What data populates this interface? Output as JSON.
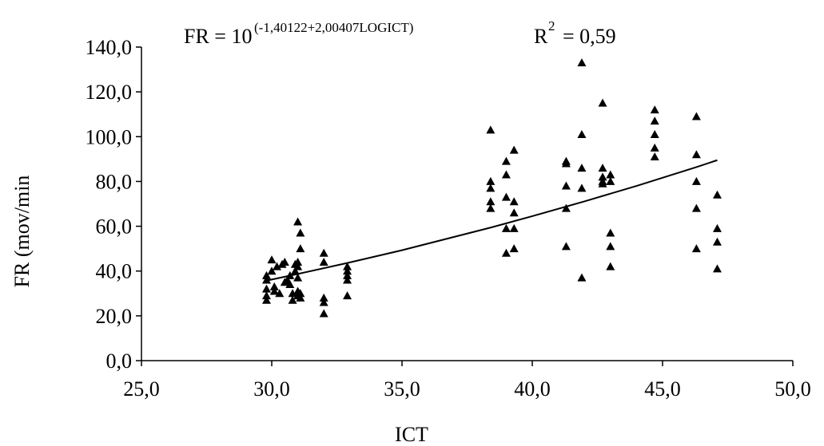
{
  "chart_data": {
    "type": "scatter",
    "annotations": [
      "FR = 10",
      "(-1,40122+2,00407LOGICT)",
      "R",
      "2",
      "= 0,59"
    ],
    "xlabel": "ICT",
    "ylabel": "FR (mov/min",
    "xlim": [
      25,
      50
    ],
    "ylim": [
      0,
      140
    ],
    "xticks": [
      {
        "value": 25,
        "label": "25,0"
      },
      {
        "value": 30,
        "label": "30,0"
      },
      {
        "value": 35,
        "label": "35,0"
      },
      {
        "value": 40,
        "label": "40,0"
      },
      {
        "value": 45,
        "label": "45,0"
      },
      {
        "value": 50,
        "label": "50,0"
      }
    ],
    "yticks": [
      {
        "value": 0,
        "label": "0,0"
      },
      {
        "value": 20,
        "label": "20,0"
      },
      {
        "value": 40,
        "label": "40,0"
      },
      {
        "value": 60,
        "label": "60,0"
      },
      {
        "value": 80,
        "label": "80,0"
      },
      {
        "value": 100,
        "label": "100,0"
      },
      {
        "value": 120,
        "label": "120,0"
      },
      {
        "value": 140,
        "label": "140,0"
      }
    ],
    "grid": false,
    "series": [
      {
        "color": "#000000",
        "marker": "triangle",
        "x": [
          29.8,
          29.8,
          29.8,
          29.8,
          29.8,
          30.0,
          30.0,
          30.1,
          30.1,
          30.2,
          30.3,
          30.4,
          30.5,
          30.5,
          30.6,
          30.7,
          30.7,
          30.8,
          30.8,
          31.0,
          31.1,
          31.1,
          31.0,
          31.0,
          30.9,
          30.9,
          31.0,
          31.0,
          31.0,
          31.1,
          31.1,
          32.0,
          32.0,
          32.0,
          32.0,
          32.0,
          32.9,
          32.9,
          32.9,
          32.9,
          32.9,
          38.4,
          38.4,
          38.4,
          38.4,
          38.4,
          39.0,
          39.0,
          39.0,
          39.0,
          39.0,
          39.3,
          39.3,
          39.3,
          39.3,
          39.3,
          41.3,
          41.3,
          41.3,
          41.3,
          41.3,
          41.9,
          41.9,
          41.9,
          41.9,
          41.9,
          42.7,
          42.7,
          42.7,
          42.7,
          42.7,
          43.0,
          43.0,
          43.0,
          43.0,
          43.0,
          44.7,
          44.7,
          44.7,
          44.7,
          44.7,
          46.3,
          46.3,
          46.3,
          46.3,
          46.3,
          47.1,
          47.1,
          47.1,
          47.1
        ],
        "values": [
          38,
          36,
          32,
          29,
          27,
          45,
          40,
          33,
          31,
          42,
          30,
          43,
          44,
          35,
          36,
          38,
          34,
          30,
          27,
          62,
          57,
          50,
          44,
          42,
          43,
          40,
          37,
          31,
          29,
          28,
          30,
          48,
          44,
          28,
          26,
          21,
          42,
          40,
          38,
          36,
          29,
          103,
          80,
          77,
          71,
          68,
          89,
          83,
          73,
          59,
          48,
          94,
          71,
          66,
          59,
          50,
          89,
          88,
          78,
          68,
          51,
          133,
          101,
          86,
          77,
          37,
          115,
          86,
          82,
          80,
          79,
          83,
          80,
          57,
          51,
          42,
          112,
          107,
          101,
          95,
          91,
          109,
          92,
          80,
          68,
          50,
          74,
          59,
          53,
          41
        ]
      },
      {
        "color": "#000000",
        "style": "line",
        "x": [
          29.8,
          31.0,
          32.9,
          35.0,
          38.4,
          40.0,
          42.0,
          44.0,
          46.3,
          47.1
        ],
        "values": [
          35.7,
          38.7,
          43.6,
          49.3,
          59.4,
          64.5,
          71.1,
          78.0,
          86.4,
          89.5
        ]
      }
    ]
  }
}
